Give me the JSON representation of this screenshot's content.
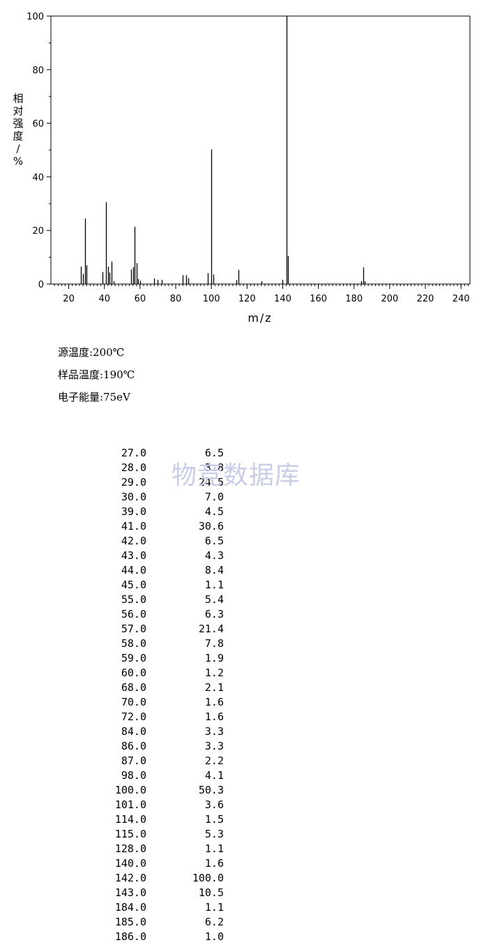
{
  "watermark": "物竞数据库",
  "conditions": {
    "source_temp": "源温度:200℃",
    "sample_temp": "样品温度:190℃",
    "electron_energy": "电子能量:75eV"
  },
  "chart_data": {
    "type": "bar",
    "xlabel": "m/z",
    "ylabel": "相对强度/%",
    "xlim": [
      10,
      245
    ],
    "ylim": [
      0,
      100
    ],
    "xticks": [
      20,
      40,
      60,
      80,
      100,
      120,
      140,
      160,
      180,
      200,
      220,
      240
    ],
    "yticks": [
      0,
      20,
      40,
      60,
      80,
      100
    ],
    "grid": false,
    "legend": "none",
    "bar_color": "#000000",
    "peaks": [
      {
        "mz": 27.0,
        "intensity": 6.5
      },
      {
        "mz": 28.0,
        "intensity": 3.8
      },
      {
        "mz": 29.0,
        "intensity": 24.5
      },
      {
        "mz": 30.0,
        "intensity": 7.0
      },
      {
        "mz": 39.0,
        "intensity": 4.5
      },
      {
        "mz": 41.0,
        "intensity": 30.6
      },
      {
        "mz": 42.0,
        "intensity": 6.5
      },
      {
        "mz": 43.0,
        "intensity": 4.3
      },
      {
        "mz": 44.0,
        "intensity": 8.4
      },
      {
        "mz": 45.0,
        "intensity": 1.1
      },
      {
        "mz": 55.0,
        "intensity": 5.4
      },
      {
        "mz": 56.0,
        "intensity": 6.3
      },
      {
        "mz": 57.0,
        "intensity": 21.4
      },
      {
        "mz": 58.0,
        "intensity": 7.8
      },
      {
        "mz": 59.0,
        "intensity": 1.9
      },
      {
        "mz": 60.0,
        "intensity": 1.2
      },
      {
        "mz": 68.0,
        "intensity": 2.1
      },
      {
        "mz": 70.0,
        "intensity": 1.6
      },
      {
        "mz": 72.0,
        "intensity": 1.6
      },
      {
        "mz": 84.0,
        "intensity": 3.3
      },
      {
        "mz": 86.0,
        "intensity": 3.3
      },
      {
        "mz": 87.0,
        "intensity": 2.2
      },
      {
        "mz": 98.0,
        "intensity": 4.1
      },
      {
        "mz": 100.0,
        "intensity": 50.3
      },
      {
        "mz": 101.0,
        "intensity": 3.6
      },
      {
        "mz": 114.0,
        "intensity": 1.5
      },
      {
        "mz": 115.0,
        "intensity": 5.3
      },
      {
        "mz": 128.0,
        "intensity": 1.1
      },
      {
        "mz": 140.0,
        "intensity": 1.6
      },
      {
        "mz": 142.0,
        "intensity": 100.0
      },
      {
        "mz": 143.0,
        "intensity": 10.5
      },
      {
        "mz": 184.0,
        "intensity": 1.1
      },
      {
        "mz": 185.0,
        "intensity": 6.2
      },
      {
        "mz": 186.0,
        "intensity": 1.0
      }
    ]
  },
  "peak_table": [
    {
      "mz": "27.0",
      "intensity": "6.5"
    },
    {
      "mz": "28.0",
      "intensity": "3.8"
    },
    {
      "mz": "29.0",
      "intensity": "24.5"
    },
    {
      "mz": "30.0",
      "intensity": "7.0"
    },
    {
      "mz": "39.0",
      "intensity": "4.5"
    },
    {
      "mz": "41.0",
      "intensity": "30.6"
    },
    {
      "mz": "42.0",
      "intensity": "6.5"
    },
    {
      "mz": "43.0",
      "intensity": "4.3"
    },
    {
      "mz": "44.0",
      "intensity": "8.4"
    },
    {
      "mz": "45.0",
      "intensity": "1.1"
    },
    {
      "mz": "55.0",
      "intensity": "5.4"
    },
    {
      "mz": "56.0",
      "intensity": "6.3"
    },
    {
      "mz": "57.0",
      "intensity": "21.4"
    },
    {
      "mz": "58.0",
      "intensity": "7.8"
    },
    {
      "mz": "59.0",
      "intensity": "1.9"
    },
    {
      "mz": "60.0",
      "intensity": "1.2"
    },
    {
      "mz": "68.0",
      "intensity": "2.1"
    },
    {
      "mz": "70.0",
      "intensity": "1.6"
    },
    {
      "mz": "72.0",
      "intensity": "1.6"
    },
    {
      "mz": "84.0",
      "intensity": "3.3"
    },
    {
      "mz": "86.0",
      "intensity": "3.3"
    },
    {
      "mz": "87.0",
      "intensity": "2.2"
    },
    {
      "mz": "98.0",
      "intensity": "4.1"
    },
    {
      "mz": "100.0",
      "intensity": "50.3"
    },
    {
      "mz": "101.0",
      "intensity": "3.6"
    },
    {
      "mz": "114.0",
      "intensity": "1.5"
    },
    {
      "mz": "115.0",
      "intensity": "5.3"
    },
    {
      "mz": "128.0",
      "intensity": "1.1"
    },
    {
      "mz": "140.0",
      "intensity": "1.6"
    },
    {
      "mz": "142.0",
      "intensity": "100.0"
    },
    {
      "mz": "143.0",
      "intensity": "10.5"
    },
    {
      "mz": "184.0",
      "intensity": "1.1"
    },
    {
      "mz": "185.0",
      "intensity": "6.2"
    },
    {
      "mz": "186.0",
      "intensity": "1.0"
    }
  ]
}
